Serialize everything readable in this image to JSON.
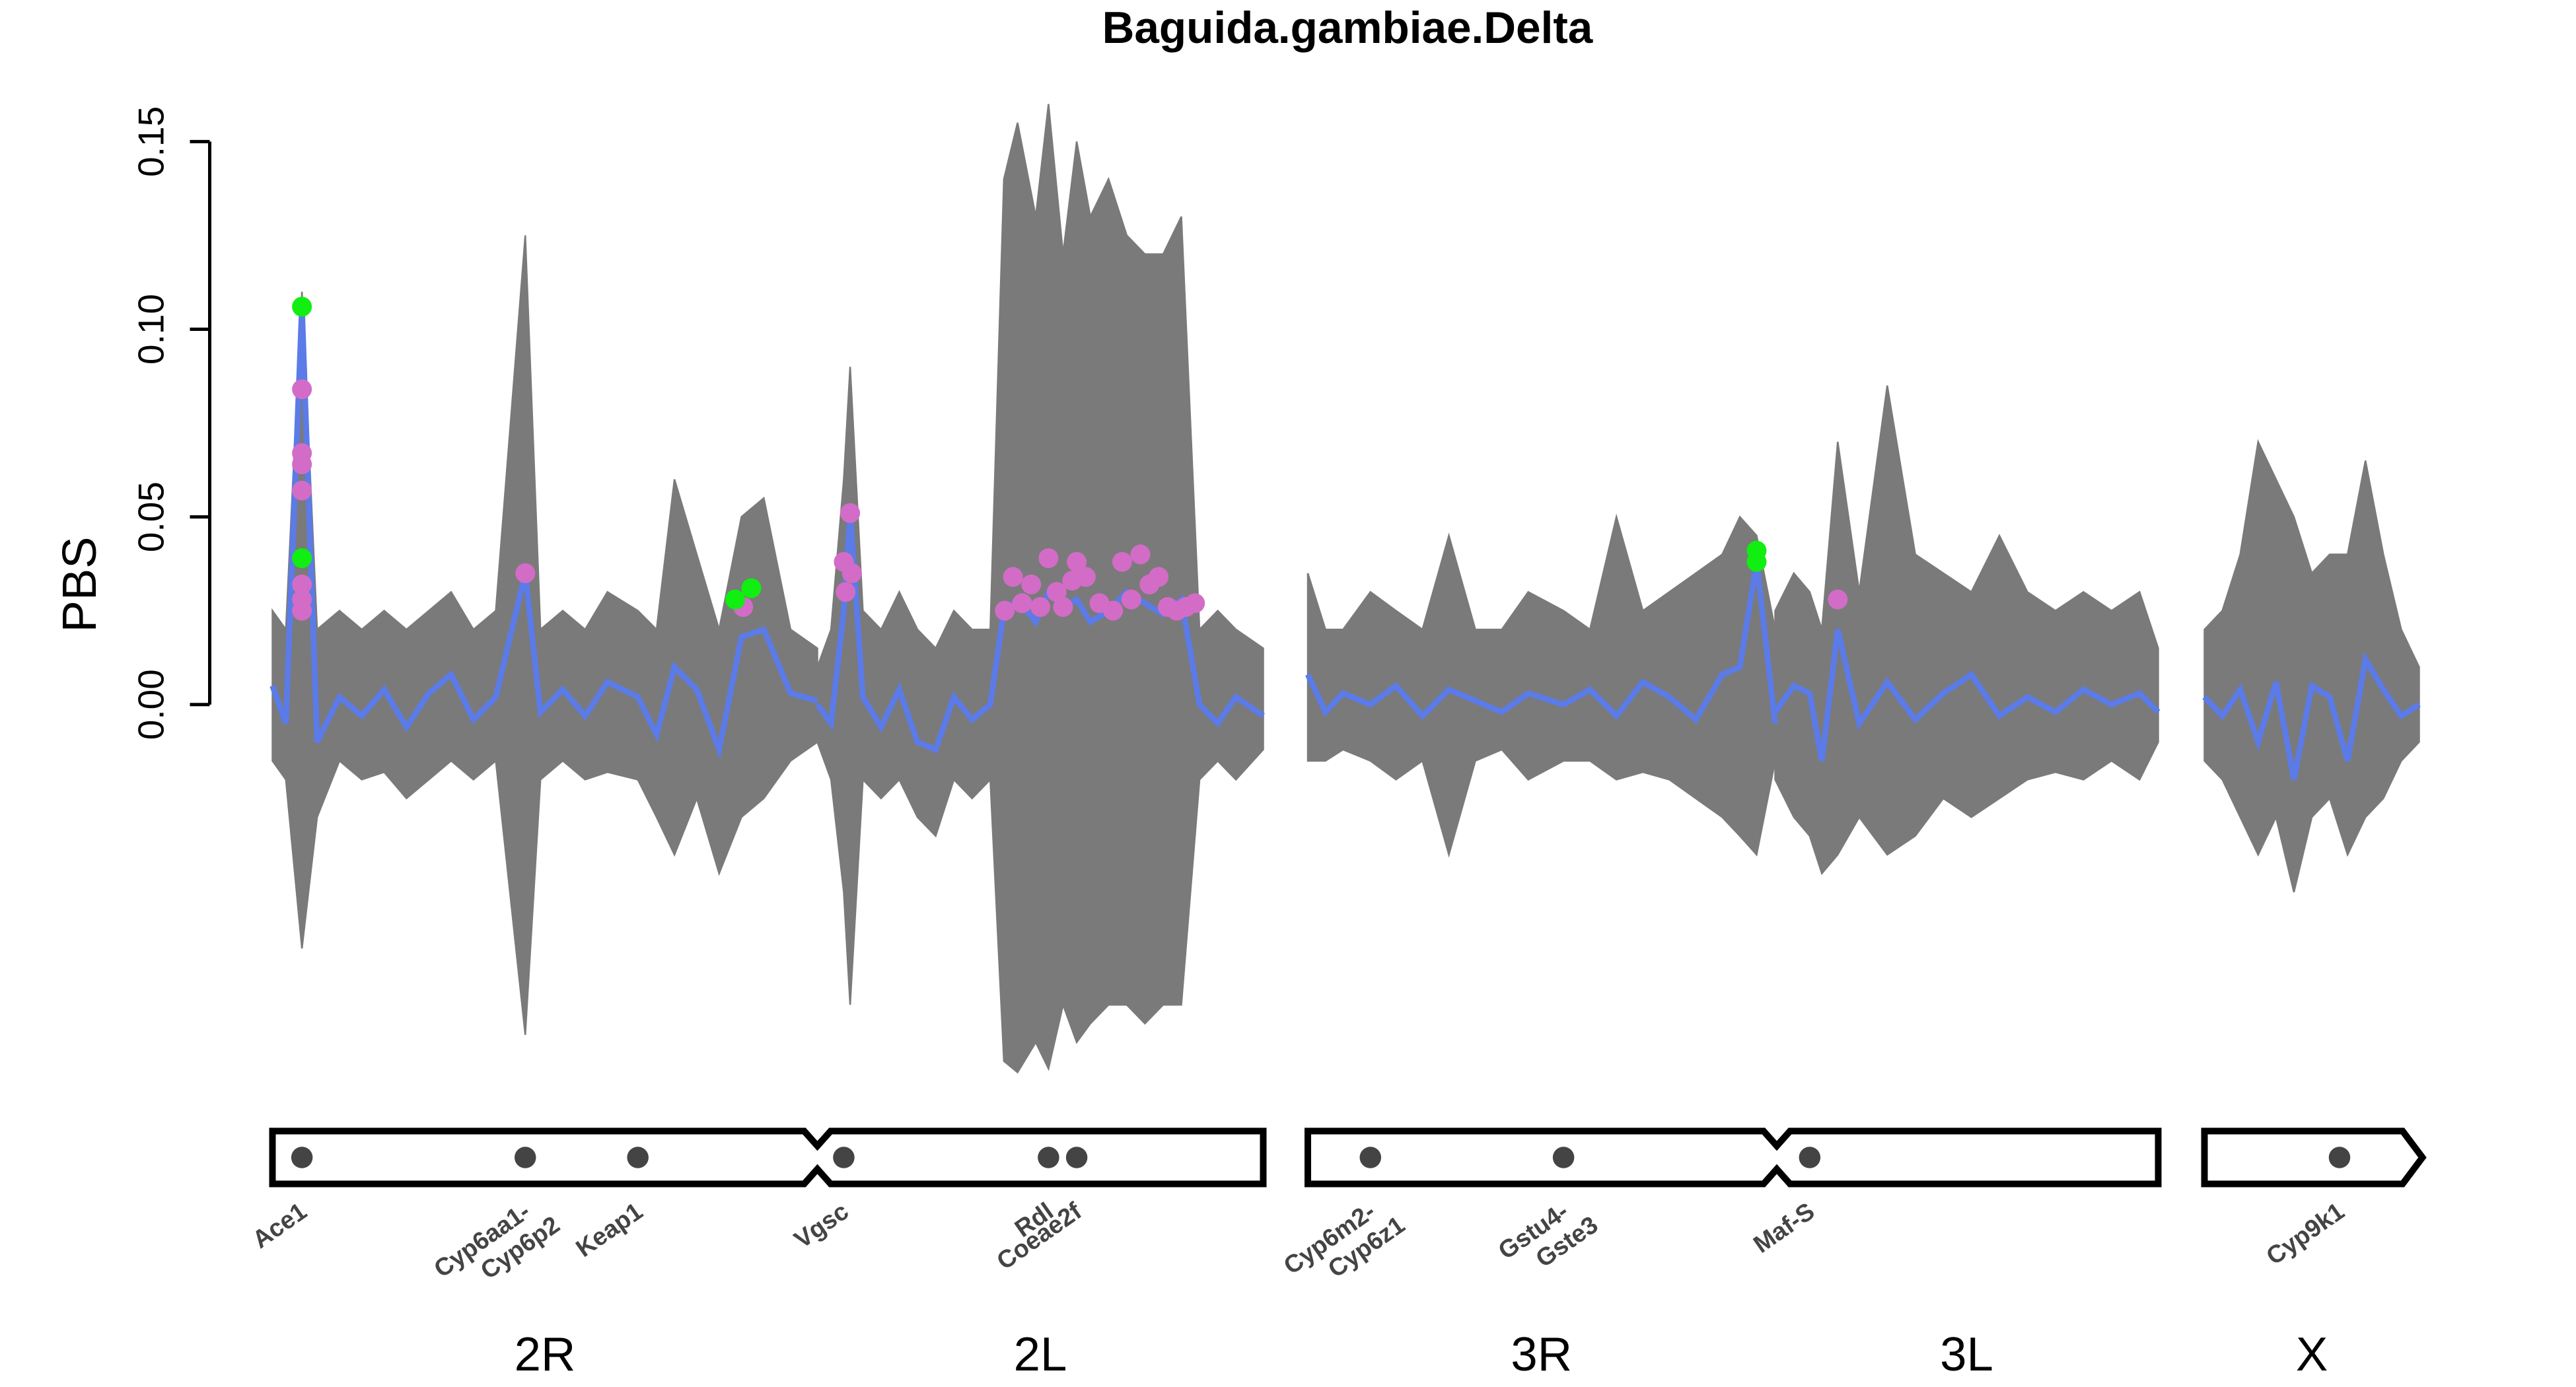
{
  "chart_data": {
    "type": "genome-scan",
    "title": "Baguida.gambiae.Delta",
    "ylabel": "PBS",
    "ylim": [
      -0.1,
      0.16
    ],
    "yticks": [
      {
        "value": 0,
        "label": "0.00"
      },
      0.05,
      {
        "value": 0.1,
        "label": "0.10"
      },
      0.15
    ],
    "colors": {
      "line": "#5b7be8",
      "envelope": "#7a7a7a",
      "gene": "#444444"
    },
    "arms": [
      {
        "name": "2R",
        "xlim": [
          0,
          61
        ],
        "x": [
          0,
          1.5,
          3.3,
          5,
          7.5,
          10,
          12.5,
          15,
          17.5,
          20,
          22.5,
          25,
          28.3,
          30,
          32.5,
          35,
          37.5,
          40.9,
          43,
          45,
          47.5,
          50,
          52.5,
          55,
          58,
          61
        ],
        "values": [
          0.005,
          -0.005,
          0.106,
          -0.01,
          0.002,
          -0.003,
          0.004,
          -0.006,
          0.003,
          0.008,
          -0.004,
          0.002,
          0.035,
          -0.002,
          0.004,
          -0.003,
          0.006,
          0.002,
          -0.008,
          0.01,
          0.004,
          -0.012,
          0.018,
          0.02,
          0.003,
          0.001
        ],
        "upper": [
          0.025,
          0.02,
          0.11,
          0.02,
          0.025,
          0.02,
          0.025,
          0.02,
          0.025,
          0.03,
          0.02,
          0.025,
          0.125,
          0.02,
          0.025,
          0.02,
          0.03,
          0.025,
          0.02,
          0.06,
          0.04,
          0.02,
          0.05,
          0.055,
          0.02,
          0.015
        ],
        "lower": [
          -0.015,
          -0.02,
          -0.065,
          -0.03,
          -0.015,
          -0.02,
          -0.018,
          -0.025,
          -0.02,
          -0.015,
          -0.02,
          -0.015,
          -0.088,
          -0.02,
          -0.015,
          -0.02,
          -0.018,
          -0.02,
          -0.03,
          -0.04,
          -0.025,
          -0.045,
          -0.03,
          -0.025,
          -0.015,
          -0.01
        ],
        "points": [
          {
            "color": "#d36cc6",
            "x": [
              3.3,
              3.3,
              3.3,
              3.3,
              3.3,
              3.3,
              3.3,
              28.3,
              52.7
            ],
            "values": [
              0.084,
              0.067,
              0.064,
              0.057,
              0.032,
              0.028,
              0.025,
              0.035,
              0.026
            ]
          },
          {
            "color": "#11ee11",
            "x": [
              3.3,
              3.3,
              51.8,
              53.6
            ],
            "values": [
              0.106,
              0.039,
              0.028,
              0.031
            ]
          }
        ],
        "genes": [
          {
            "label": [
              "Ace1"
            ],
            "pos": 3.3
          },
          {
            "label": [
              "Cyp6aa1-",
              "Cyp6p2"
            ],
            "pos": 28.3
          },
          {
            "label": [
              "Keap1"
            ],
            "pos": 40.9
          }
        ]
      },
      {
        "name": "2L",
        "xlim": [
          0,
          49
        ],
        "x": [
          0,
          1.5,
          2.9,
          3.6,
          5,
          7,
          9,
          11,
          13,
          15,
          17,
          19,
          20.5,
          22,
          24,
          25.4,
          27,
          28.5,
          30,
          32,
          34,
          36,
          38,
          40,
          42,
          44,
          46,
          49
        ],
        "values": [
          0.0,
          -0.005,
          0.025,
          0.051,
          0.002,
          -0.006,
          0.004,
          -0.01,
          -0.012,
          0.002,
          -0.004,
          0.0,
          0.025,
          0.028,
          0.022,
          0.03,
          0.026,
          0.028,
          0.022,
          0.025,
          0.03,
          0.027,
          0.024,
          0.028,
          0.0,
          -0.005,
          0.002,
          -0.003
        ],
        "upper": [
          0.01,
          0.02,
          0.06,
          0.09,
          0.025,
          0.02,
          0.03,
          0.02,
          0.015,
          0.025,
          0.02,
          0.02,
          0.14,
          0.155,
          0.13,
          0.16,
          0.12,
          0.15,
          0.13,
          0.14,
          0.125,
          0.12,
          0.12,
          0.13,
          0.02,
          0.025,
          0.02,
          0.015
        ],
        "lower": [
          -0.01,
          -0.02,
          -0.05,
          -0.08,
          -0.02,
          -0.025,
          -0.02,
          -0.03,
          -0.035,
          -0.02,
          -0.025,
          -0.02,
          -0.095,
          -0.098,
          -0.09,
          -0.097,
          -0.08,
          -0.09,
          -0.085,
          -0.08,
          -0.08,
          -0.085,
          -0.08,
          -0.08,
          -0.02,
          -0.015,
          -0.02,
          -0.012
        ],
        "points": [
          {
            "color": "#d36cc6",
            "x": [
              2.9,
              3.1,
              3.6,
              3.8,
              20.6,
              21.5,
              22.5,
              23.5,
              24.5,
              25.4,
              26.3,
              27,
              28,
              28.5,
              29.5,
              31,
              32.5,
              33.5,
              34.5,
              35.5,
              36.5,
              37.5,
              38.5,
              39.5,
              40.5,
              41.5
            ],
            "values": [
              0.038,
              0.03,
              0.051,
              0.035,
              0.025,
              0.034,
              0.027,
              0.032,
              0.026,
              0.039,
              0.03,
              0.026,
              0.033,
              0.038,
              0.034,
              0.027,
              0.025,
              0.038,
              0.028,
              0.04,
              0.032,
              0.034,
              0.026,
              0.025,
              0.026,
              0.027
            ]
          }
        ],
        "genes": [
          {
            "label": [
              "Vgsc"
            ],
            "pos": 2.9
          },
          {
            "label": [
              "Rdl"
            ],
            "pos": 25.4
          },
          {
            "label": [
              "Coeae2f"
            ],
            "pos": 28.5
          }
        ]
      },
      {
        "name": "3R",
        "xlim": [
          0,
          53
        ],
        "x": [
          0,
          2,
          4,
          7.1,
          10,
          13,
          16,
          19,
          22,
          25,
          29,
          32,
          35,
          38,
          41,
          44,
          47,
          49,
          50.9,
          53
        ],
        "values": [
          0.008,
          -0.002,
          0.003,
          0.0,
          0.005,
          -0.003,
          0.004,
          0.001,
          -0.002,
          0.003,
          0.0,
          0.004,
          -0.003,
          0.006,
          0.002,
          -0.004,
          0.008,
          0.01,
          0.038,
          -0.005
        ],
        "upper": [
          0.035,
          0.02,
          0.02,
          0.03,
          0.025,
          0.02,
          0.045,
          0.02,
          0.02,
          0.03,
          0.025,
          0.02,
          0.05,
          0.025,
          0.03,
          0.035,
          0.04,
          0.05,
          0.045,
          0.02
        ],
        "lower": [
          -0.015,
          -0.015,
          -0.012,
          -0.015,
          -0.02,
          -0.015,
          -0.04,
          -0.015,
          -0.012,
          -0.02,
          -0.015,
          -0.015,
          -0.02,
          -0.018,
          -0.02,
          -0.025,
          -0.03,
          -0.035,
          -0.04,
          -0.015
        ],
        "points": [
          {
            "color": "#11ee11",
            "x": [
              50.9,
              50.9
            ],
            "values": [
              0.041,
              0.038
            ]
          }
        ],
        "genes": [
          {
            "label": [
              "Cyp6m2-",
              "Cyp6z1"
            ],
            "pos": 7.1
          },
          {
            "label": [
              "Gstu4-",
              "Gste3"
            ],
            "pos": 29
          }
        ]
      },
      {
        "name": "3L",
        "xlim": [
          0,
          41
        ],
        "x": [
          0,
          2,
          3.7,
          5,
          6.7,
          9,
          12,
          15,
          18,
          21,
          24,
          27,
          30,
          33,
          36,
          39,
          41
        ],
        "values": [
          -0.002,
          0.005,
          0.003,
          -0.015,
          0.02,
          -0.005,
          0.006,
          -0.004,
          0.003,
          0.008,
          -0.003,
          0.002,
          -0.002,
          0.004,
          0.0,
          0.003,
          -0.002
        ],
        "upper": [
          0.025,
          0.035,
          0.03,
          0.02,
          0.07,
          0.03,
          0.085,
          0.04,
          0.035,
          0.03,
          0.045,
          0.03,
          0.025,
          0.03,
          0.025,
          0.03,
          0.015
        ],
        "lower": [
          -0.02,
          -0.03,
          -0.035,
          -0.045,
          -0.04,
          -0.03,
          -0.04,
          -0.035,
          -0.025,
          -0.03,
          -0.025,
          -0.02,
          -0.018,
          -0.02,
          -0.015,
          -0.02,
          -0.01
        ],
        "points": [
          {
            "color": "#d36cc6",
            "x": [
              6.7
            ],
            "values": [
              0.028
            ]
          }
        ],
        "genes": [
          {
            "label": [
              "Maf-S"
            ],
            "pos": 3.7
          }
        ]
      },
      {
        "name": "X",
        "xlim": [
          0,
          24
        ],
        "x": [
          0,
          2,
          4,
          6,
          8,
          10,
          12,
          14,
          16,
          18,
          20,
          22,
          24
        ],
        "values": [
          0.002,
          -0.003,
          0.004,
          -0.01,
          0.006,
          -0.02,
          0.005,
          0.002,
          -0.015,
          0.012,
          0.004,
          -0.003,
          0.0
        ],
        "upper": [
          0.02,
          0.025,
          0.04,
          0.07,
          0.06,
          0.05,
          0.035,
          0.04,
          0.04,
          0.065,
          0.04,
          0.02,
          0.01
        ],
        "lower": [
          -0.015,
          -0.02,
          -0.03,
          -0.04,
          -0.03,
          -0.05,
          -0.03,
          -0.025,
          -0.04,
          -0.03,
          -0.025,
          -0.015,
          -0.01
        ],
        "genes": [
          {
            "label": [
              "Cyp9k1"
            ],
            "pos": 15.1
          }
        ]
      }
    ]
  }
}
